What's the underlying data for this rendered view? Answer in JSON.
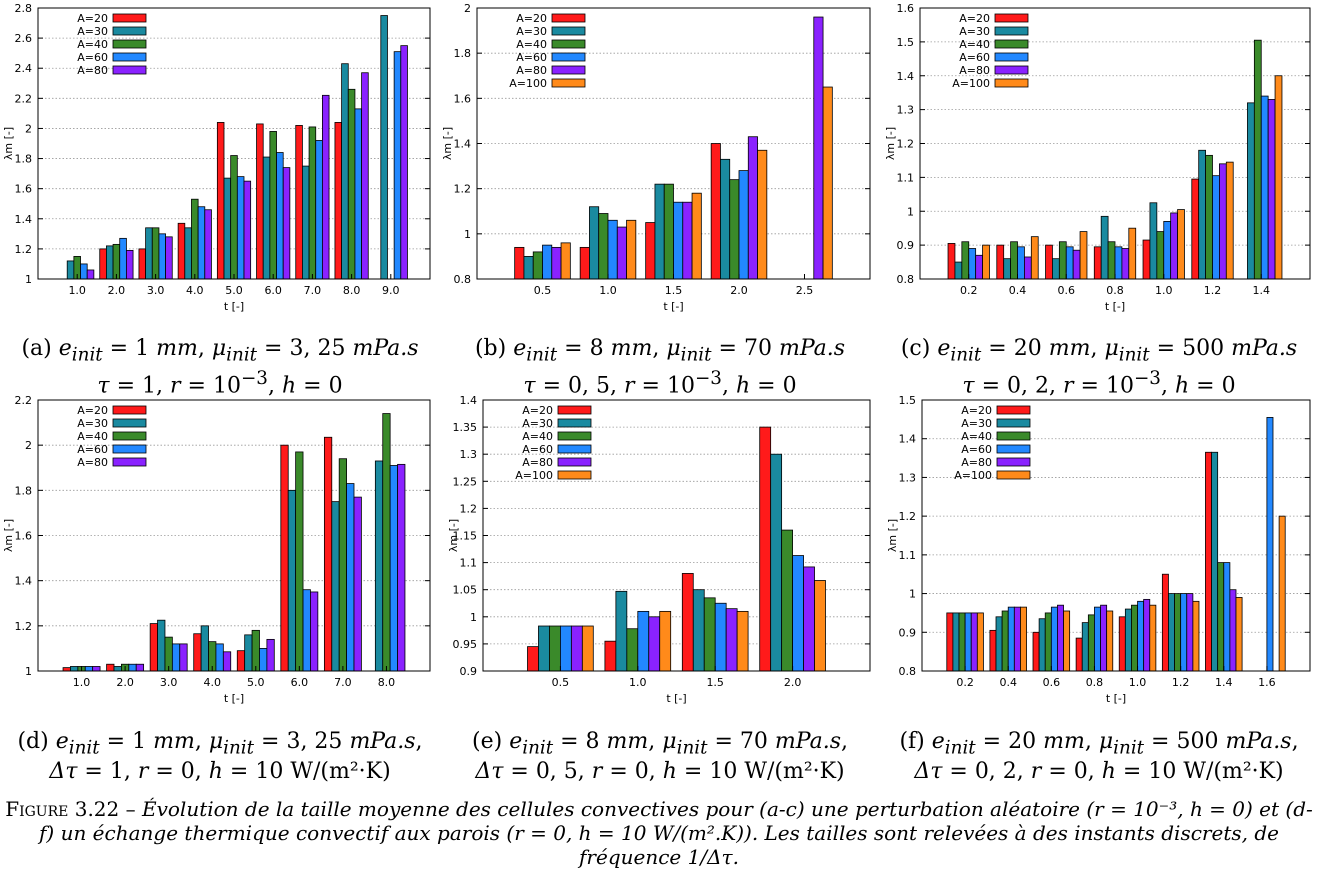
{
  "chart_data": [
    {
      "id": "a",
      "type": "bar",
      "categories": [
        "1.0",
        "2.0",
        "3.0",
        "4.0",
        "5.0",
        "6.0",
        "7.0",
        "8.0",
        "9.0"
      ],
      "xlabel": "t [-]",
      "ylabel": "λm [-]",
      "ylim": [
        1,
        2.8
      ],
      "yticks": [
        "1",
        "1.2",
        "1.4",
        "1.6",
        "1.8",
        "2",
        "2.2",
        "2.4",
        "2.6",
        "2.8"
      ],
      "legend_position": "top-left",
      "series": [
        {
          "name": "A=20",
          "color": "#ff1a1a",
          "values": [
            1.0,
            1.2,
            1.2,
            1.37,
            2.04,
            2.03,
            2.02,
            2.04,
            null
          ]
        },
        {
          "name": "A=30",
          "color": "#1a8aa0",
          "values": [
            1.12,
            1.22,
            1.34,
            1.34,
            1.67,
            1.81,
            1.75,
            2.43,
            2.75
          ]
        },
        {
          "name": "A=40",
          "color": "#3a8a2a",
          "values": [
            1.15,
            1.23,
            1.34,
            1.53,
            1.82,
            1.98,
            2.01,
            2.26,
            null
          ]
        },
        {
          "name": "A=60",
          "color": "#2288ff",
          "values": [
            1.1,
            1.27,
            1.3,
            1.48,
            1.68,
            1.84,
            1.92,
            2.13,
            2.51
          ]
        },
        {
          "name": "A=80",
          "color": "#8a22ff",
          "values": [
            1.06,
            1.19,
            1.28,
            1.46,
            1.65,
            1.74,
            2.22,
            2.37,
            2.55
          ]
        }
      ]
    },
    {
      "id": "b",
      "type": "bar",
      "categories": [
        "0.5",
        "1.0",
        "1.5",
        "2.0",
        "2.5"
      ],
      "xlabel": "t [-]",
      "ylabel": "λm [-]",
      "ylim": [
        0.8,
        2
      ],
      "yticks": [
        "0.8",
        "1",
        "1.2",
        "1.4",
        "1.6",
        "1.8",
        "2"
      ],
      "legend_position": "top-left",
      "series": [
        {
          "name": "A=20",
          "color": "#ff1a1a",
          "values": [
            0.94,
            0.94,
            1.05,
            1.4,
            null
          ]
        },
        {
          "name": "A=30",
          "color": "#1a8aa0",
          "values": [
            0.9,
            1.12,
            1.22,
            1.33,
            null
          ]
        },
        {
          "name": "A=40",
          "color": "#3a8a2a",
          "values": [
            0.92,
            1.09,
            1.22,
            1.24,
            null
          ]
        },
        {
          "name": "A=60",
          "color": "#2288ff",
          "values": [
            0.95,
            1.06,
            1.14,
            1.28,
            null
          ]
        },
        {
          "name": "A=80",
          "color": "#8a22ff",
          "values": [
            0.94,
            1.03,
            1.14,
            1.43,
            1.96
          ]
        },
        {
          "name": "A=100",
          "color": "#ff8a1a",
          "values": [
            0.96,
            1.06,
            1.18,
            1.37,
            1.65
          ]
        }
      ]
    },
    {
      "id": "c",
      "type": "bar",
      "categories": [
        "0.2",
        "0.4",
        "0.6",
        "0.8",
        "1.0",
        "1.2",
        "1.4"
      ],
      "xlabel": "t [-]",
      "ylabel": "λm [-]",
      "ylim": [
        0.8,
        1.6
      ],
      "yticks": [
        "0.8",
        "0.9",
        "1",
        "1.1",
        "1.2",
        "1.3",
        "1.4",
        "1.5",
        "1.6"
      ],
      "legend_position": "top-left",
      "series": [
        {
          "name": "A=20",
          "color": "#ff1a1a",
          "values": [
            0.905,
            0.9,
            0.9,
            0.895,
            0.915,
            1.095,
            null
          ]
        },
        {
          "name": "A=30",
          "color": "#1a8aa0",
          "values": [
            0.85,
            0.86,
            0.86,
            0.985,
            1.025,
            1.18,
            1.32
          ]
        },
        {
          "name": "A=40",
          "color": "#3a8a2a",
          "values": [
            0.91,
            0.91,
            0.91,
            0.91,
            0.94,
            1.165,
            1.505
          ]
        },
        {
          "name": "A=60",
          "color": "#2288ff",
          "values": [
            0.89,
            0.895,
            0.895,
            0.895,
            0.97,
            1.105,
            1.34
          ]
        },
        {
          "name": "A=80",
          "color": "#8a22ff",
          "values": [
            0.87,
            0.865,
            0.885,
            0.89,
            0.995,
            1.14,
            1.33
          ]
        },
        {
          "name": "A=100",
          "color": "#ff8a1a",
          "values": [
            0.9,
            0.925,
            0.94,
            0.95,
            1.005,
            1.145,
            1.4
          ]
        }
      ]
    },
    {
      "id": "d",
      "type": "bar",
      "categories": [
        "1.0",
        "2.0",
        "3.0",
        "4.0",
        "5.0",
        "6.0",
        "7.0",
        "8.0"
      ],
      "xlabel": "t [-]",
      "ylabel": "λm [-]",
      "ylim": [
        1,
        2.2
      ],
      "yticks": [
        "1",
        "1.2",
        "1.4",
        "1.6",
        "1.8",
        "2",
        "2.2"
      ],
      "legend_position": "top-left",
      "series": [
        {
          "name": "A=20",
          "color": "#ff1a1a",
          "values": [
            1.015,
            1.03,
            1.21,
            1.165,
            1.09,
            2.0,
            2.035,
            null
          ]
        },
        {
          "name": "A=30",
          "color": "#1a8aa0",
          "values": [
            1.02,
            1.02,
            1.225,
            1.2,
            1.16,
            1.8,
            1.75,
            1.93
          ]
        },
        {
          "name": "A=40",
          "color": "#3a8a2a",
          "values": [
            1.02,
            1.03,
            1.15,
            1.13,
            1.18,
            1.97,
            1.94,
            2.14
          ]
        },
        {
          "name": "A=60",
          "color": "#2288ff",
          "values": [
            1.02,
            1.03,
            1.12,
            1.12,
            1.1,
            1.36,
            1.83,
            1.91
          ]
        },
        {
          "name": "A=80",
          "color": "#8a22ff",
          "values": [
            1.02,
            1.03,
            1.12,
            1.085,
            1.14,
            1.35,
            1.77,
            1.915
          ]
        }
      ]
    },
    {
      "id": "e",
      "type": "bar",
      "categories": [
        "0.5",
        "1.0",
        "1.5",
        "2.0"
      ],
      "xlabel": "t [-]",
      "ylabel": "λm [-]",
      "ylim": [
        0.9,
        1.4
      ],
      "yticks": [
        "0.9",
        "0.95",
        "1",
        "1.05",
        "1.1",
        "1.15",
        "1.2",
        "1.25",
        "1.3",
        "1.35",
        "1.4"
      ],
      "legend_position": "top-left",
      "series": [
        {
          "name": "A=20",
          "color": "#ff1a1a",
          "values": [
            0.945,
            0.955,
            1.08,
            1.35
          ]
        },
        {
          "name": "A=30",
          "color": "#1a8aa0",
          "values": [
            0.983,
            1.047,
            1.05,
            1.3
          ]
        },
        {
          "name": "A=40",
          "color": "#3a8a2a",
          "values": [
            0.983,
            0.978,
            1.035,
            1.16
          ]
        },
        {
          "name": "A=60",
          "color": "#2288ff",
          "values": [
            0.983,
            1.01,
            1.025,
            1.113
          ]
        },
        {
          "name": "A=80",
          "color": "#8a22ff",
          "values": [
            0.983,
            1.0,
            1.015,
            1.092
          ]
        },
        {
          "name": "A=100",
          "color": "#ff8a1a",
          "values": [
            0.983,
            1.01,
            1.01,
            1.067
          ]
        }
      ]
    },
    {
      "id": "f",
      "type": "bar",
      "categories": [
        "0.2",
        "0.4",
        "0.6",
        "0.8",
        "1.0",
        "1.2",
        "1.4",
        "1.6"
      ],
      "xlabel": "t [-]",
      "ylabel": "λm [-]",
      "ylim": [
        0.8,
        1.5
      ],
      "yticks": [
        "0.8",
        "0.9",
        "1",
        "1.1",
        "1.2",
        "1.3",
        "1.4",
        "1.5"
      ],
      "legend_position": "top-left",
      "series": [
        {
          "name": "A=20",
          "color": "#ff1a1a",
          "values": [
            0.95,
            0.905,
            0.9,
            0.885,
            0.94,
            1.05,
            1.365,
            null
          ]
        },
        {
          "name": "A=30",
          "color": "#1a8aa0",
          "values": [
            0.95,
            0.94,
            0.935,
            0.925,
            0.96,
            1.0,
            1.365,
            null
          ]
        },
        {
          "name": "A=40",
          "color": "#3a8a2a",
          "values": [
            0.95,
            0.955,
            0.95,
            0.945,
            0.97,
            1.0,
            1.08,
            null
          ]
        },
        {
          "name": "A=60",
          "color": "#2288ff",
          "values": [
            0.95,
            0.965,
            0.965,
            0.965,
            0.98,
            1.0,
            1.08,
            1.455
          ]
        },
        {
          "name": "A=80",
          "color": "#8a22ff",
          "values": [
            0.95,
            0.965,
            0.97,
            0.97,
            0.985,
            1.0,
            1.01,
            null
          ]
        },
        {
          "name": "A=100",
          "color": "#ff8a1a",
          "values": [
            0.95,
            0.965,
            0.955,
            0.955,
            0.97,
            0.98,
            0.99,
            1.2
          ]
        }
      ]
    }
  ],
  "subcaptions": [
    {
      "letter": "(a)",
      "e": "1",
      "mu": "3, 25",
      "sep": "",
      "dtau_symbol": "τ",
      "dtau": "1",
      "r_base": "10",
      "r_exp": "−3",
      "r": "",
      "h": "0",
      "h_unit": ""
    },
    {
      "letter": "(b)",
      "e": "8",
      "mu": "70",
      "sep": "",
      "dtau_symbol": "τ",
      "dtau": "0, 5",
      "r_base": "10",
      "r_exp": "−3",
      "r": "",
      "h": "0",
      "h_unit": ""
    },
    {
      "letter": "(c)",
      "e": "20",
      "mu": "500",
      "sep": "",
      "dtau_symbol": "τ",
      "dtau": "0, 2",
      "r_base": "10",
      "r_exp": "−3",
      "r": "",
      "h": "0",
      "h_unit": ""
    },
    {
      "letter": "(d)",
      "e": "1",
      "mu": "3, 25",
      "sep": ",",
      "dtau_symbol": "Δτ",
      "dtau": "1",
      "r_base": "",
      "r_exp": "",
      "r": "0",
      "h": "10",
      "h_unit": "W/(m²·K)"
    },
    {
      "letter": "(e)",
      "e": "8",
      "mu": "70",
      "sep": ",",
      "dtau_symbol": "Δτ",
      "dtau": "0, 5",
      "r_base": "",
      "r_exp": "",
      "r": "0",
      "h": "10",
      "h_unit": "W/(m²·K)"
    },
    {
      "letter": "(f)",
      "e": "20",
      "mu": "500",
      "sep": ",",
      "dtau_symbol": "Δτ",
      "dtau": "0, 2",
      "r_base": "",
      "r_exp": "",
      "r": "0",
      "h": "10",
      "h_unit": "W/(m²·K)"
    }
  ],
  "subcaption_units": {
    "e": "mm",
    "mu": "mPa.s",
    "e_sym": "e",
    "mu_sym": "μ",
    "sub": "init"
  },
  "figure_caption": {
    "label": "Figure 3.22 –",
    "text": "Évolution de la taille moyenne des cellules convectives pour (a-c) une perturbation aléatoire (r = 10⁻³, h = 0) et (d-f) un échange thermique convectif aux parois (r = 0, h = 10 W/(m².K)). Les tailles sont relevées à des instants discrets, de fréquence 1/Δτ."
  }
}
